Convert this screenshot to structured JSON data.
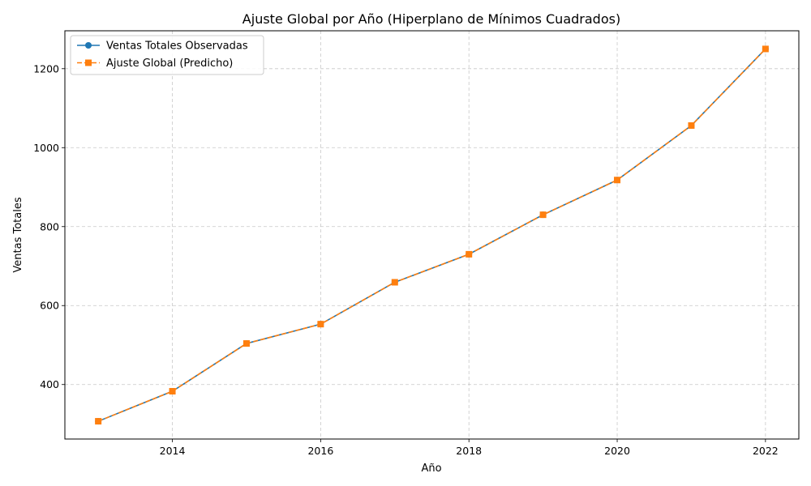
{
  "chart_data": {
    "type": "line",
    "title": "Ajuste Global por Año (Hiperplano de Mínimos Cuadrados)",
    "xlabel": "Año",
    "ylabel": "Ventas Totales",
    "xlim": [
      2012.55,
      2022.45
    ],
    "ylim": [
      262,
      1296
    ],
    "x_ticks": [
      2014,
      2016,
      2018,
      2020,
      2022
    ],
    "y_ticks": [
      400,
      600,
      800,
      1000,
      1200
    ],
    "grid": true,
    "legend_position": "top-left",
    "x": [
      2013,
      2014,
      2015,
      2016,
      2017,
      2018,
      2019,
      2020,
      2021,
      2022
    ],
    "series": [
      {
        "name": "Ventas Totales Observadas",
        "values": [
          307,
          383,
          504,
          553,
          659,
          730,
          830,
          918,
          1056,
          1250
        ],
        "color": "#1f77b4",
        "marker": "circle",
        "line_style": "solid"
      },
      {
        "name": "Ajuste Global (Predicho)",
        "values": [
          307,
          383,
          504,
          553,
          659,
          730,
          830,
          918,
          1056,
          1250
        ],
        "color": "#ff7f0e",
        "marker": "square",
        "line_style": "dashed"
      }
    ]
  }
}
